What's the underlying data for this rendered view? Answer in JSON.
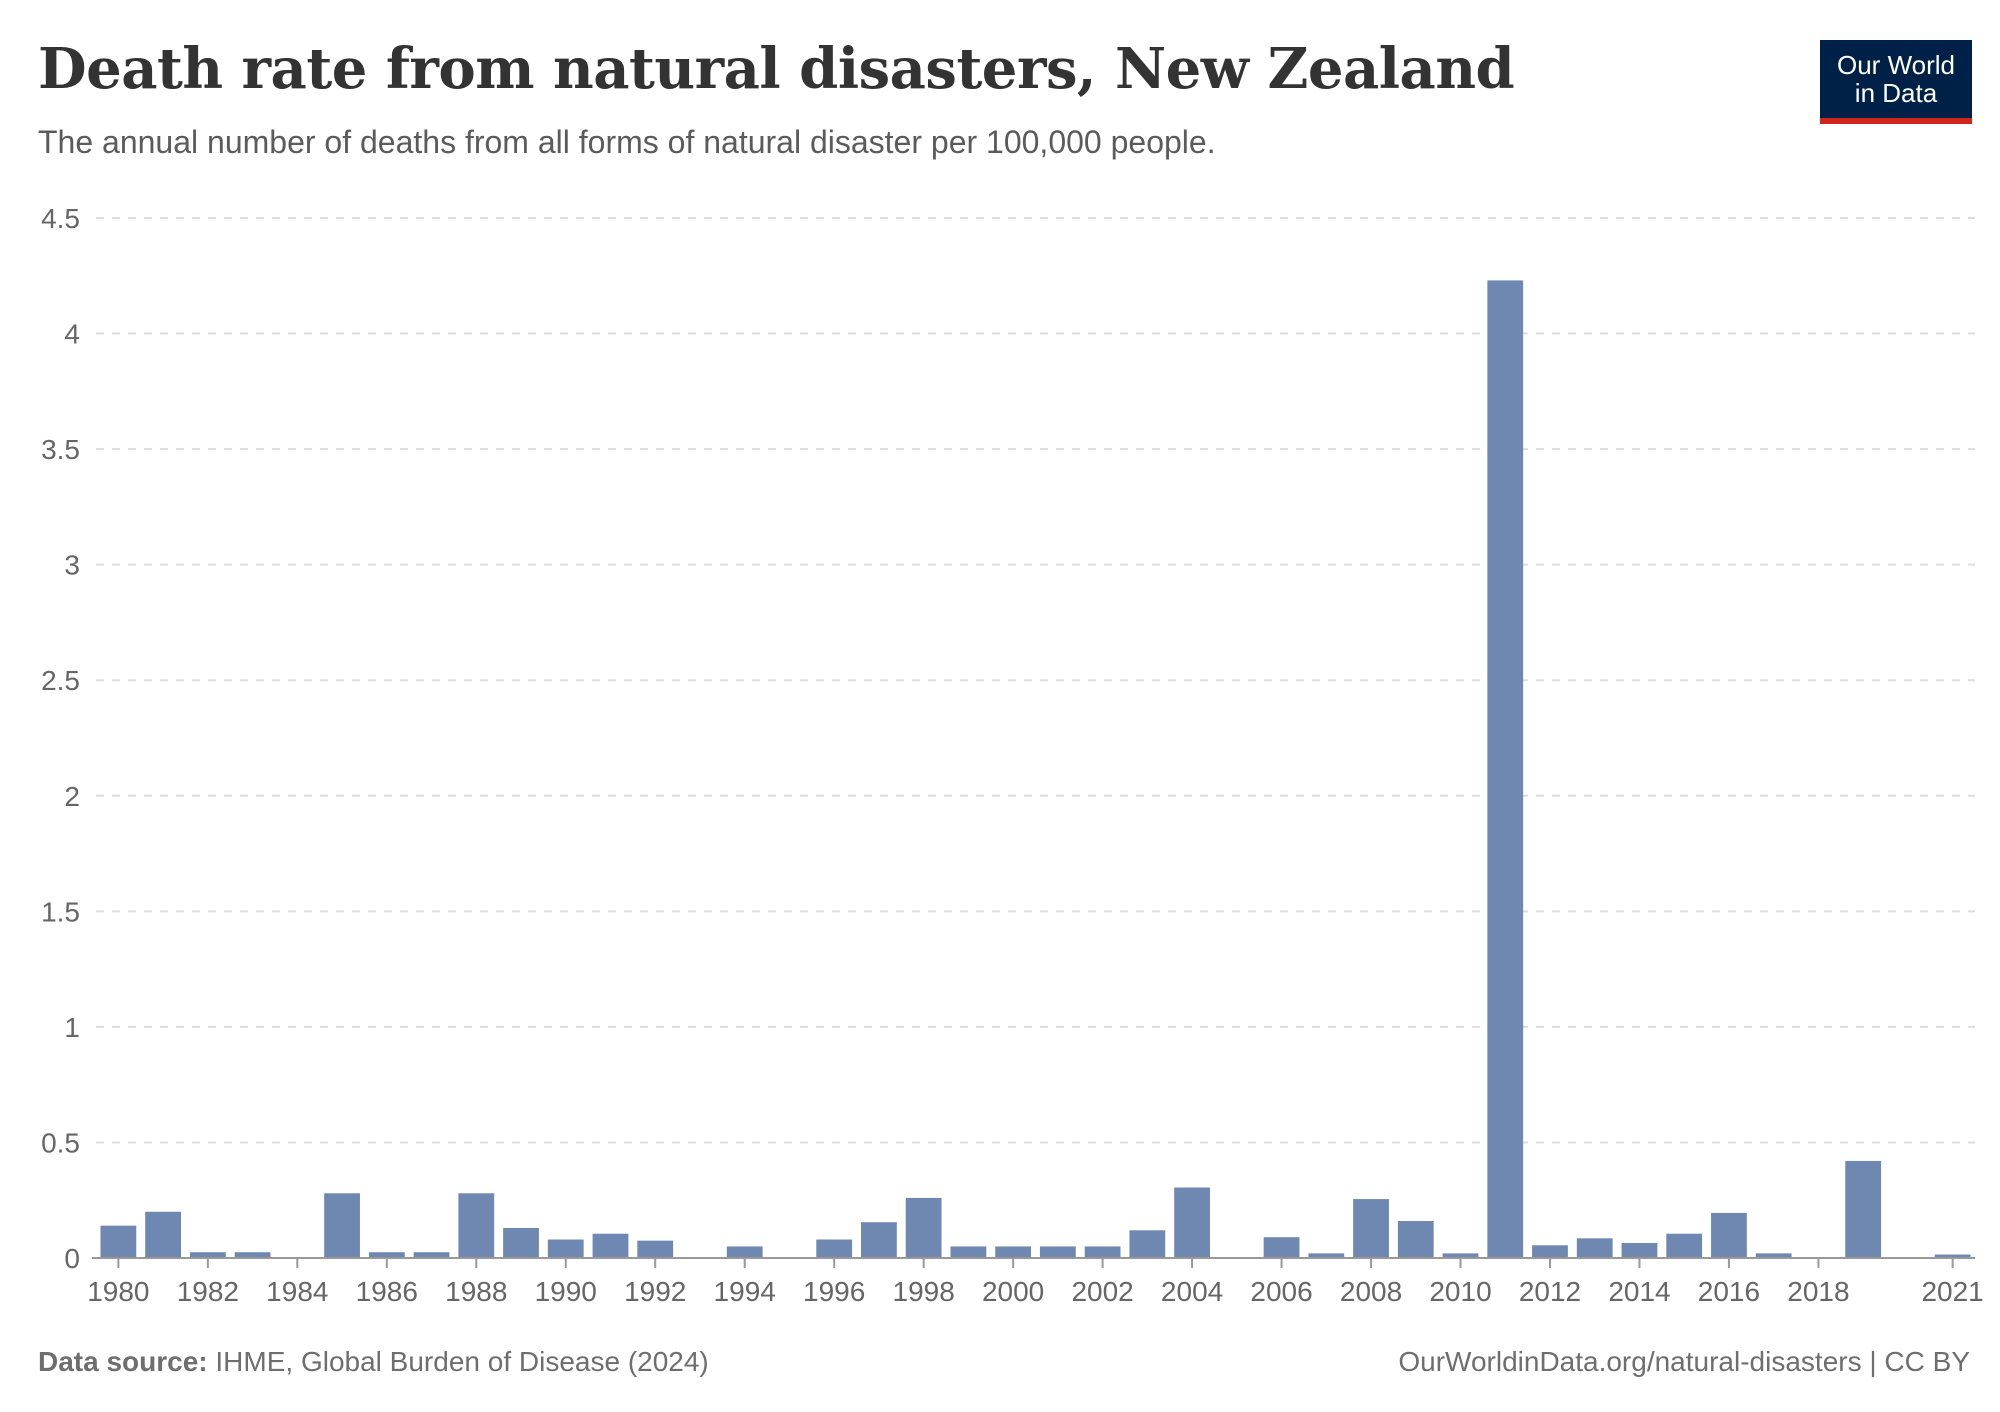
{
  "header": {
    "title": "Death rate from natural disasters, New Zealand",
    "subtitle": "The annual number of deaths from all forms of natural disaster per 100,000 people.",
    "logo_line1": "Our World",
    "logo_line2": "in Data"
  },
  "footer": {
    "source_label": "Data source:",
    "source_text": "IHME, Global Burden of Disease (2024)",
    "url_text": "OurWorldinData.org/natural-disasters | CC BY"
  },
  "colors": {
    "bar": "#6f88b2",
    "grid": "#dddddd",
    "axis": "#999999",
    "logo_bg": "#002147",
    "logo_accent": "#ce261e"
  },
  "chart_data": {
    "type": "bar",
    "title": "Death rate from natural disasters, New Zealand",
    "xlabel": "",
    "ylabel": "",
    "ylim": [
      0,
      4.5
    ],
    "y_ticks": [
      0,
      0.5,
      1,
      1.5,
      2,
      2.5,
      3,
      3.5,
      4,
      4.5
    ],
    "y_tick_labels": [
      "0",
      "0.5",
      "1",
      "1.5",
      "2",
      "2.5",
      "3",
      "3.5",
      "4",
      "4.5"
    ],
    "grid": true,
    "x_tick_labels": [
      "1980",
      "1982",
      "1984",
      "1986",
      "1988",
      "1990",
      "1992",
      "1994",
      "1996",
      "1998",
      "2000",
      "2002",
      "2004",
      "2006",
      "2008",
      "2010",
      "2012",
      "2014",
      "2016",
      "2018",
      "2021"
    ],
    "categories": [
      1980,
      1981,
      1982,
      1983,
      1984,
      1985,
      1986,
      1987,
      1988,
      1989,
      1990,
      1991,
      1992,
      1993,
      1994,
      1995,
      1996,
      1997,
      1998,
      1999,
      2000,
      2001,
      2002,
      2003,
      2004,
      2005,
      2006,
      2007,
      2008,
      2009,
      2010,
      2011,
      2012,
      2013,
      2014,
      2015,
      2016,
      2017,
      2018,
      2019,
      2020,
      2021
    ],
    "values": [
      0.14,
      0.2,
      0.025,
      0.025,
      0,
      0.28,
      0.025,
      0.025,
      0.28,
      0.13,
      0.08,
      0.105,
      0.075,
      0,
      0.05,
      0,
      0.08,
      0.155,
      0.26,
      0.05,
      0.05,
      0.05,
      0.05,
      0.12,
      0.305,
      0,
      0.09,
      0.02,
      0.255,
      0.16,
      0.02,
      4.23,
      0.055,
      0.085,
      0.065,
      0.105,
      0.195,
      0.02,
      0,
      0.42,
      0,
      0.015
    ]
  }
}
